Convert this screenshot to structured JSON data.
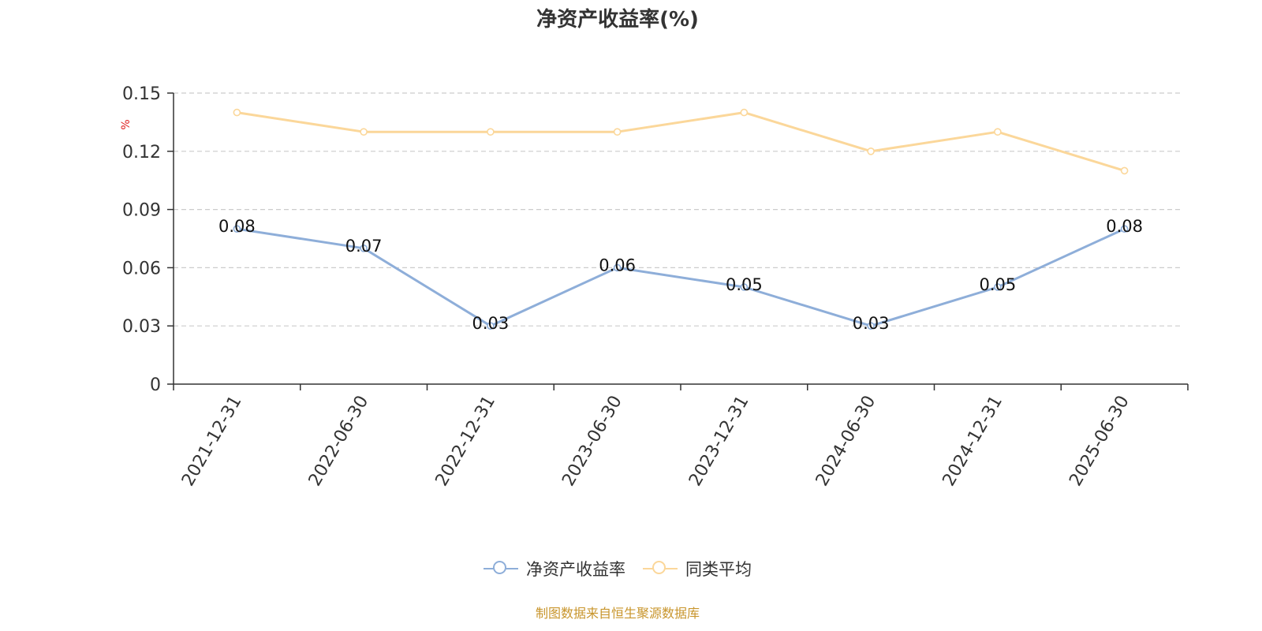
{
  "chart_data": {
    "type": "line",
    "title": "净资产收益率(%)",
    "ylabel": "%",
    "xlabel": "",
    "categories": [
      "2021-12-31",
      "2022-06-30",
      "2022-12-31",
      "2023-06-30",
      "2023-12-31",
      "2024-06-30",
      "2024-12-31",
      "2025-06-30"
    ],
    "ylim": [
      0,
      0.15
    ],
    "yticks": [
      "0",
      "0.03",
      "0.06",
      "0.09",
      "0.12",
      "0.15"
    ],
    "ytick_values": [
      0,
      0.03,
      0.06,
      0.09,
      0.12,
      0.15
    ],
    "grid": true,
    "legend_position": "bottom",
    "series": [
      {
        "name": "净资产收益率",
        "values": [
          0.08,
          0.07,
          0.03,
          0.06,
          0.05,
          0.03,
          0.05,
          0.08
        ],
        "labels": [
          "0.08",
          "0.07",
          "0.03",
          "0.06",
          "0.05",
          "0.03",
          "0.05",
          "0.08"
        ],
        "color": "#8eaed9"
      },
      {
        "name": "同类平均",
        "values": [
          0.14,
          0.13,
          0.13,
          0.13,
          0.14,
          0.12,
          0.13,
          0.11
        ],
        "color": "#fbd79a"
      }
    ]
  },
  "source": "制图数据来自恒生聚源数据库",
  "colors": {
    "axis": "#333333",
    "grid": "#cccccc",
    "ylabel": "#e02020",
    "source": "#c8952c"
  }
}
